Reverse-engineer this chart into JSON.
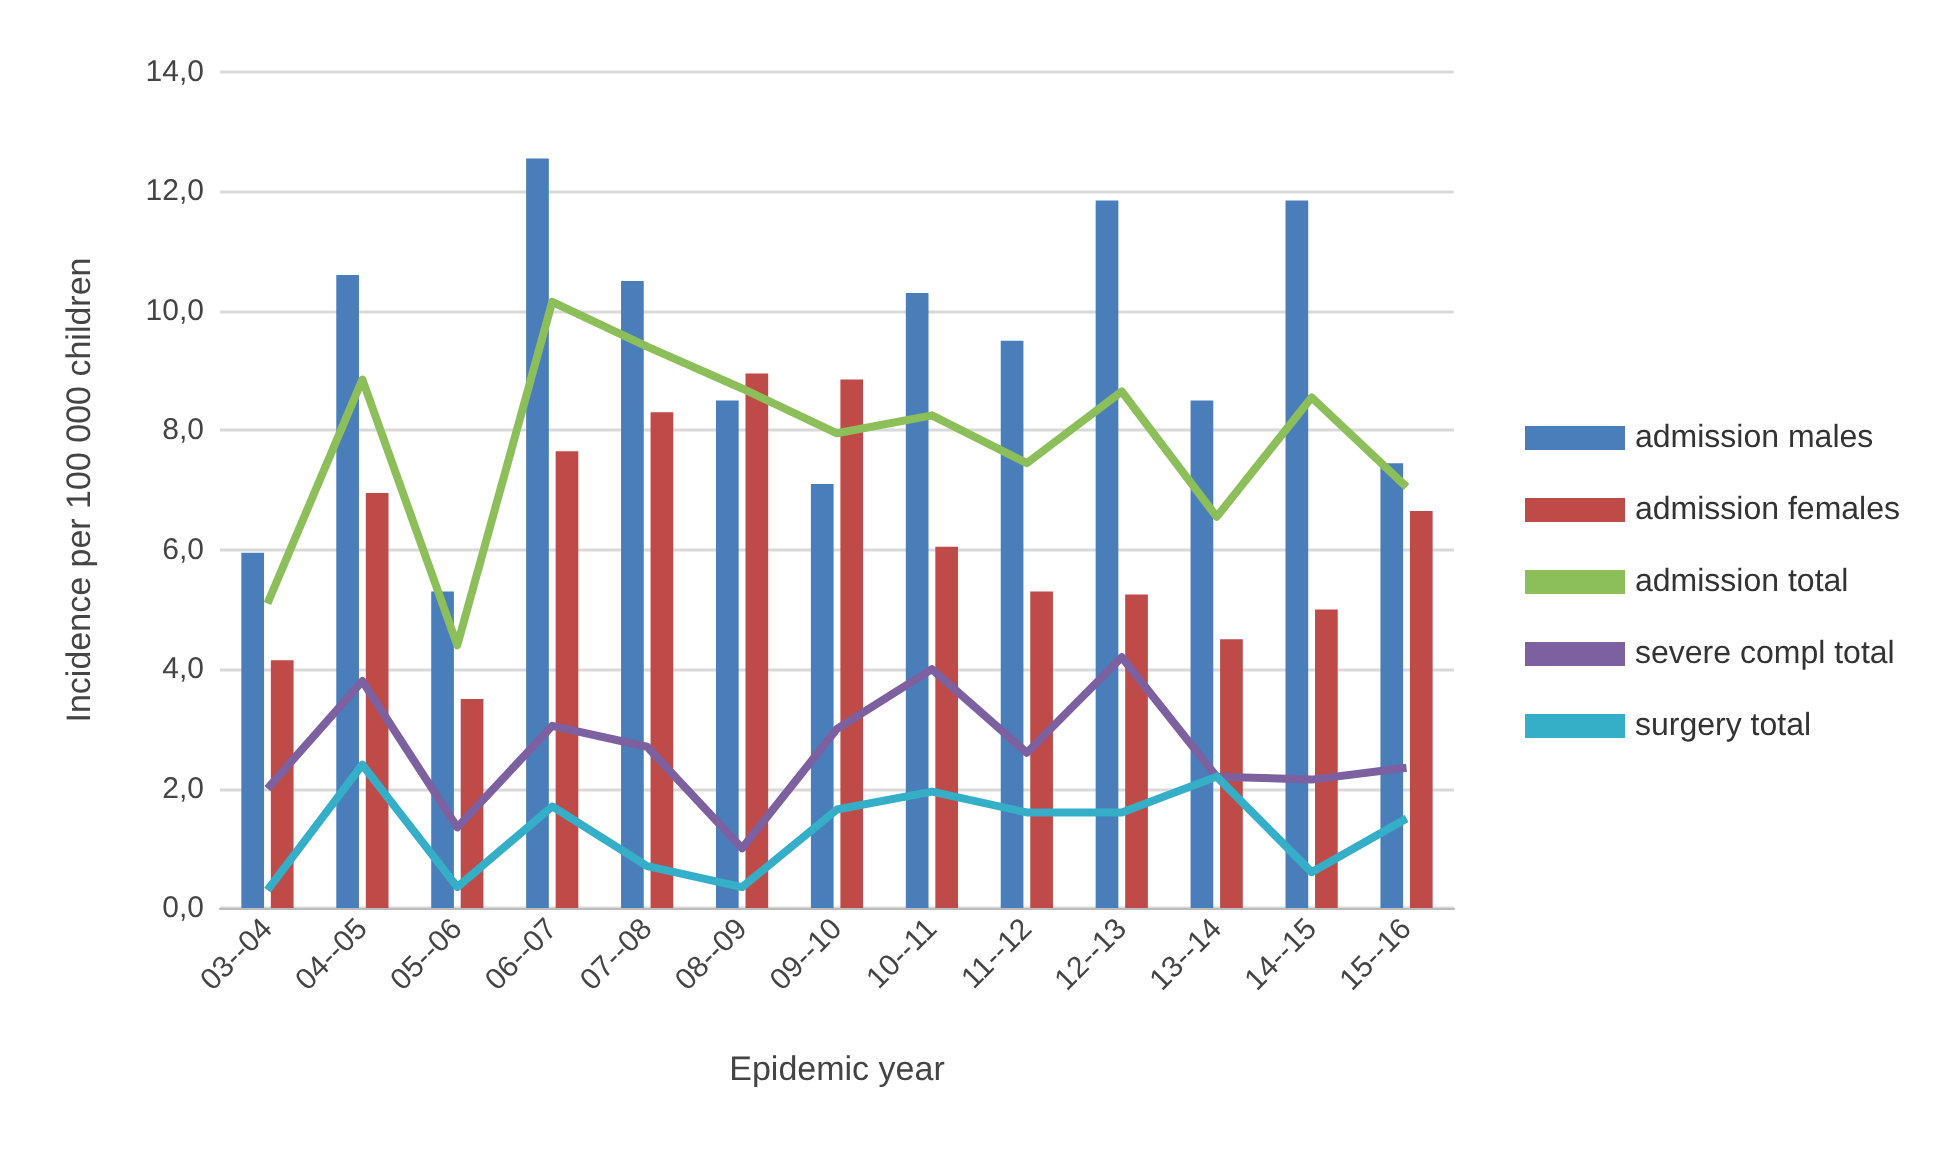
{
  "chart_data": {
    "type": "bar",
    "xlabel": "Epidemic year",
    "ylabel": "Incidence per 100 000 children",
    "categories": [
      "03--04",
      "04--05",
      "05--06",
      "06--07",
      "07--08",
      "08--09",
      "09--10",
      "10--11",
      "11--12",
      "12--13",
      "13--14",
      "14--15",
      "15--16"
    ],
    "series": [
      {
        "name": "admission males",
        "color": "#4a7ebb",
        "values": [
          5.95,
          10.6,
          5.3,
          12.55,
          10.5,
          8.5,
          7.1,
          10.3,
          9.5,
          11.85,
          8.5,
          11.85,
          7.45
        ]
      },
      {
        "name": "admission females",
        "color": "#be4b48",
        "values": [
          4.15,
          6.95,
          3.5,
          7.65,
          8.3,
          8.95,
          8.85,
          6.05,
          5.3,
          5.25,
          4.5,
          5.0,
          6.65
        ]
      },
      {
        "name": "admission total",
        "type": "line",
        "color": "#8cbf5a",
        "values": [
          5.1,
          8.85,
          4.4,
          10.15,
          9.4,
          8.7,
          7.95,
          8.25,
          7.45,
          8.65,
          6.55,
          8.55,
          7.05
        ]
      },
      {
        "name": "severe compl total",
        "type": "line",
        "color": "#7d60a0",
        "values": [
          2.0,
          3.8,
          1.35,
          3.05,
          2.7,
          1.0,
          3.0,
          4.0,
          2.6,
          4.2,
          2.2,
          2.15,
          2.35
        ]
      },
      {
        "name": "surgery total",
        "type": "line",
        "color": "#35aec8",
        "values": [
          0.3,
          2.4,
          0.35,
          1.7,
          0.7,
          0.35,
          1.65,
          1.95,
          1.6,
          1.6,
          2.2,
          0.6,
          1.5
        ]
      }
    ],
    "ylim": [
      0,
      14
    ],
    "yticks": [
      {
        "value": 0,
        "label": "0,0"
      },
      {
        "value": 2,
        "label": "2,0"
      },
      {
        "value": 4,
        "label": "4,0"
      },
      {
        "value": 6,
        "label": "6,0"
      },
      {
        "value": 8,
        "label": "8,0"
      },
      {
        "value": 10,
        "label": "10,0"
      },
      {
        "value": 12,
        "label": "12,0"
      },
      {
        "value": 14,
        "label": "14,0"
      }
    ],
    "grid": "y",
    "legend": "right",
    "marker": "none"
  }
}
